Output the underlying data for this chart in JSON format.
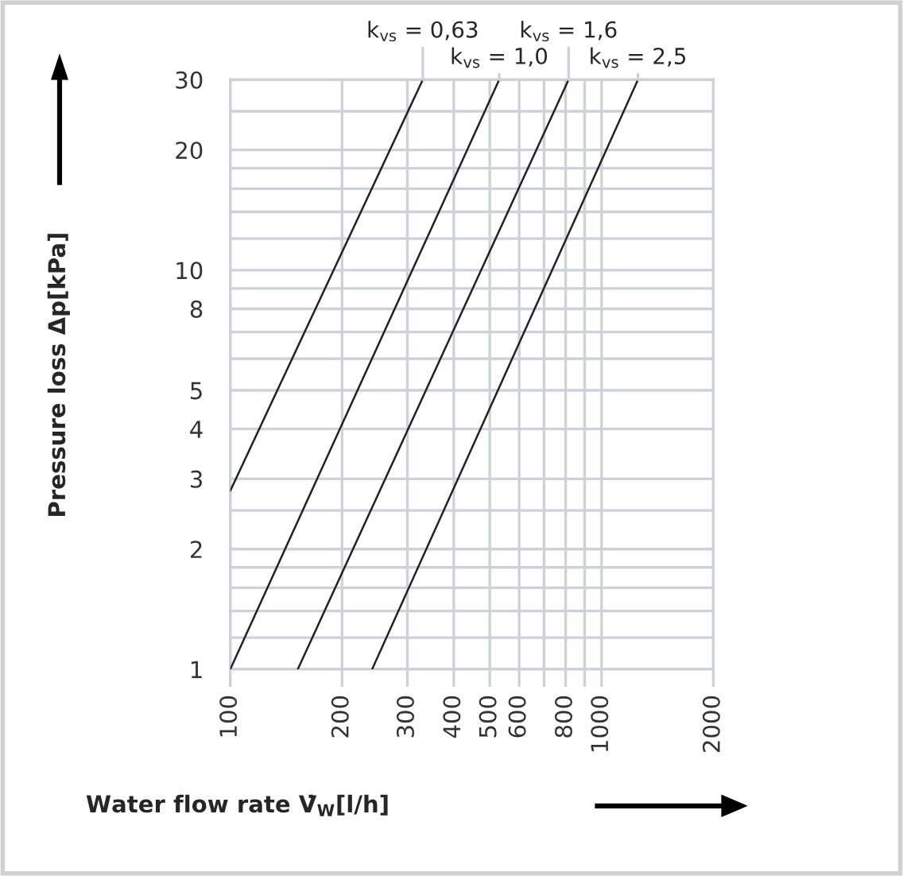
{
  "chart_data": {
    "type": "line",
    "xlabel": "Water flow rate V̇$_{W}$[l/h]",
    "ylabel": "Pressure loss Δp[kPa]",
    "log": "xy",
    "grid": true,
    "marker": "none",
    "line_style": "solid",
    "xlim": [
      100,
      2000
    ],
    "ylim": [
      1,
      30
    ],
    "xticks": [
      100,
      200,
      300,
      400,
      500,
      600,
      {
        "value": 700,
        "label": null
      },
      800,
      {
        "value": 900,
        "label": null
      },
      1000,
      2000
    ],
    "yticks": [
      1,
      {
        "value": 1.2,
        "label": null
      },
      {
        "value": 1.4,
        "label": null
      },
      {
        "value": 1.6,
        "label": null
      },
      {
        "value": 1.8,
        "label": null
      },
      2,
      {
        "value": 2.5,
        "label": null
      },
      3,
      4,
      5,
      {
        "value": 6,
        "label": null
      },
      {
        "value": 7,
        "label": null
      },
      8,
      {
        "value": 9,
        "label": null
      },
      10,
      {
        "value": 12,
        "label": null
      },
      {
        "value": 14,
        "label": null
      },
      {
        "value": 16,
        "label": null
      },
      {
        "value": 18,
        "label": null
      },
      20,
      {
        "value": 25,
        "label": null
      },
      30
    ],
    "series": [
      {
        "color": "#222222",
        "x": [
          100,
          330
        ],
        "values": [
          2.8,
          30
        ]
      },
      {
        "color": "#222222",
        "x": [
          100,
          530
        ],
        "values": [
          1,
          30
        ]
      },
      {
        "color": "#222222",
        "x": [
          152,
          815
        ],
        "values": [
          1,
          30
        ]
      },
      {
        "color": "#222222",
        "x": [
          241,
          1253
        ],
        "values": [
          1,
          30
        ]
      }
    ],
    "annotations": [
      {
        "text": "k$_{vs}$ = 0,63",
        "x": 330,
        "y": 30
      },
      {
        "text": "k$_{vs}$ = 1,0",
        "x": 530,
        "y": 30
      },
      {
        "text": "k$_{vs}$ = 1,6",
        "x": 815,
        "y": 30
      },
      {
        "text": "k$_{vs}$ = 2,5",
        "x": 1253,
        "y": 30
      }
    ]
  }
}
